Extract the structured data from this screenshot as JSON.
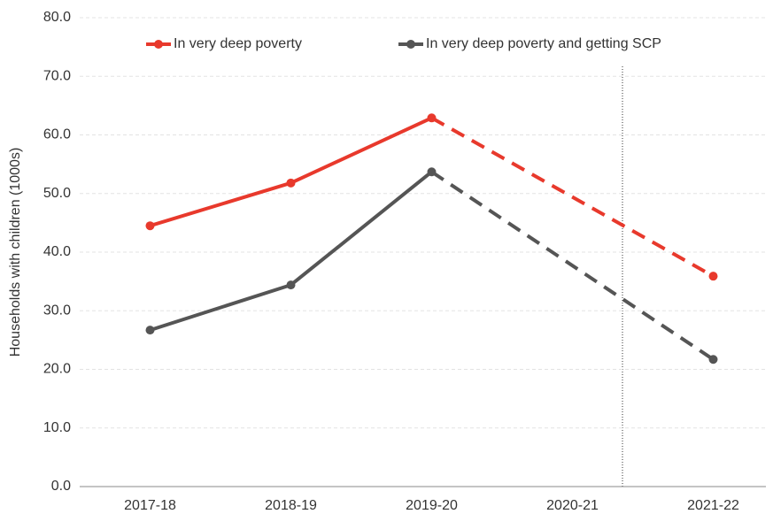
{
  "chart_data": {
    "type": "line",
    "y_label": "Households with children (1000s)",
    "categories": [
      "2017-18",
      "2018-19",
      "2019-20",
      "2020-21",
      "2021-22"
    ],
    "series": [
      {
        "name": "In very deep poverty",
        "color": "#e8392c",
        "values": [
          44.5,
          51.8,
          62.9,
          null,
          35.9
        ]
      },
      {
        "name": "In very deep poverty and getting SCP",
        "color": "#555555",
        "values": [
          26.7,
          34.4,
          53.7,
          null,
          21.7
        ]
      }
    ],
    "ylim": [
      0,
      80
    ],
    "yticks": [
      {
        "value": 0,
        "label": "0.0"
      },
      {
        "value": 10,
        "label": "10.0"
      },
      {
        "value": 20,
        "label": "20.0"
      },
      {
        "value": 30,
        "label": "30.0"
      },
      {
        "value": 40,
        "label": "40.0"
      },
      {
        "value": 50,
        "label": "50.0"
      },
      {
        "value": 60,
        "label": "60.0"
      },
      {
        "value": 70,
        "label": "70.0"
      },
      {
        "value": 80,
        "label": "80.0"
      }
    ],
    "grid": true
  }
}
